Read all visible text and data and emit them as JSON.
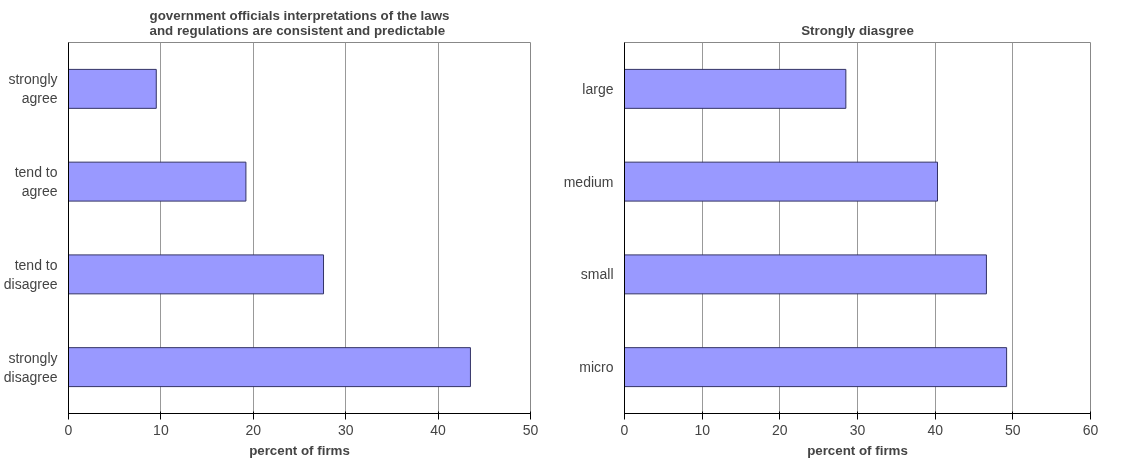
{
  "chart_data": [
    {
      "type": "bar",
      "orientation": "horizontal",
      "title": "government officials interpretations of the laws and regulations are consistent and predictable",
      "xlabel": "percent of firms",
      "categories": [
        "strongly agree",
        "tend to agree",
        "tend to disagree",
        "strongly disagree"
      ],
      "values": [
        9.5,
        19.2,
        27.6,
        43.5
      ],
      "color": "#9999ff",
      "xlim": [
        0,
        50
      ],
      "xticks": [
        0,
        10,
        20,
        30,
        40,
        50
      ],
      "grid": "x"
    },
    {
      "type": "bar",
      "orientation": "horizontal",
      "title": "Strongly diasgree",
      "xlabel": "percent of firms",
      "categories": [
        "large",
        "medium",
        "small",
        "micro"
      ],
      "values": [
        28.5,
        40.3,
        46.6,
        49.2
      ],
      "color": "#9999ff",
      "xlim": [
        0,
        60
      ],
      "xticks": [
        0,
        10,
        20,
        30,
        40,
        50,
        60
      ],
      "grid": "x"
    }
  ]
}
